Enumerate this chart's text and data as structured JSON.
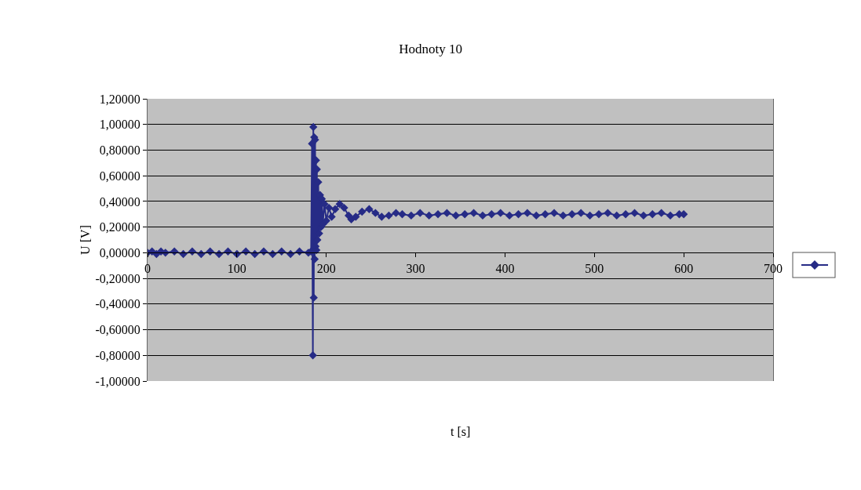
{
  "chart_data": {
    "type": "line",
    "title": "Hodnoty 10",
    "xlabel": "t [s]",
    "ylabel": "U [V]",
    "xlim": [
      0,
      700
    ],
    "xticks": [
      0,
      100,
      200,
      300,
      400,
      500,
      600,
      700
    ],
    "ylim": [
      -1,
      1.2
    ],
    "yticks": [
      {
        "value": -1,
        "label": "-1,00000"
      },
      {
        "value": -0.8,
        "label": "-0,80000"
      },
      {
        "value": -0.6,
        "label": "-0,60000"
      },
      {
        "value": -0.4,
        "label": "-0,40000"
      },
      {
        "value": -0.2,
        "label": "-0,20000"
      },
      {
        "value": 0,
        "label": "0,00000"
      },
      {
        "value": 0.2,
        "label": "0,20000"
      },
      {
        "value": 0.4,
        "label": "0,40000"
      },
      {
        "value": 0.6,
        "label": "0,60000"
      },
      {
        "value": 0.8,
        "label": "0,80000"
      },
      {
        "value": 1,
        "label": "1,00000"
      },
      {
        "value": 1.2,
        "label": "1,20000"
      }
    ],
    "grid": "y",
    "marker": "diamond",
    "line_style": "solid",
    "series": [
      {
        "color": "#262b86",
        "x": [
          0,
          5,
          10,
          15,
          20,
          30,
          40,
          50,
          60,
          70,
          80,
          90,
          100,
          110,
          120,
          130,
          140,
          150,
          160,
          170,
          180,
          183,
          184,
          185,
          185.5,
          186,
          186.5,
          187,
          187.5,
          188,
          188.5,
          189,
          189.5,
          190,
          191,
          192,
          193,
          194,
          195,
          196,
          198,
          200,
          203,
          206,
          210,
          215,
          220,
          225,
          228,
          233,
          240,
          248,
          255,
          262,
          270,
          278,
          285,
          295,
          305,
          315,
          325,
          335,
          345,
          355,
          365,
          375,
          385,
          395,
          405,
          415,
          425,
          435,
          445,
          455,
          465,
          475,
          485,
          495,
          505,
          515,
          525,
          535,
          545,
          555,
          565,
          575,
          585,
          595,
          600
        ],
        "values": [
          0,
          0.01,
          -0.01,
          0.01,
          0,
          0.01,
          -0.01,
          0.01,
          -0.01,
          0.01,
          -0.01,
          0.01,
          -0.01,
          0.01,
          -0.01,
          0.01,
          -0.01,
          0.01,
          -0.01,
          0.01,
          0,
          0.01,
          0.85,
          -0.8,
          0.98,
          -0.35,
          0.9,
          -0.05,
          0.88,
          0.05,
          0.72,
          0.02,
          0.65,
          0.1,
          0.55,
          0.15,
          0.45,
          0.2,
          0.42,
          0.22,
          0.38,
          0.25,
          0.35,
          0.28,
          0.34,
          0.38,
          0.35,
          0.29,
          0.26,
          0.28,
          0.32,
          0.34,
          0.31,
          0.28,
          0.29,
          0.31,
          0.3,
          0.29,
          0.31,
          0.29,
          0.3,
          0.31,
          0.29,
          0.3,
          0.31,
          0.29,
          0.3,
          0.31,
          0.29,
          0.3,
          0.31,
          0.29,
          0.3,
          0.31,
          0.29,
          0.3,
          0.31,
          0.29,
          0.3,
          0.31,
          0.29,
          0.3,
          0.31,
          0.29,
          0.3,
          0.31,
          0.29,
          0.3,
          0.3
        ]
      }
    ]
  }
}
